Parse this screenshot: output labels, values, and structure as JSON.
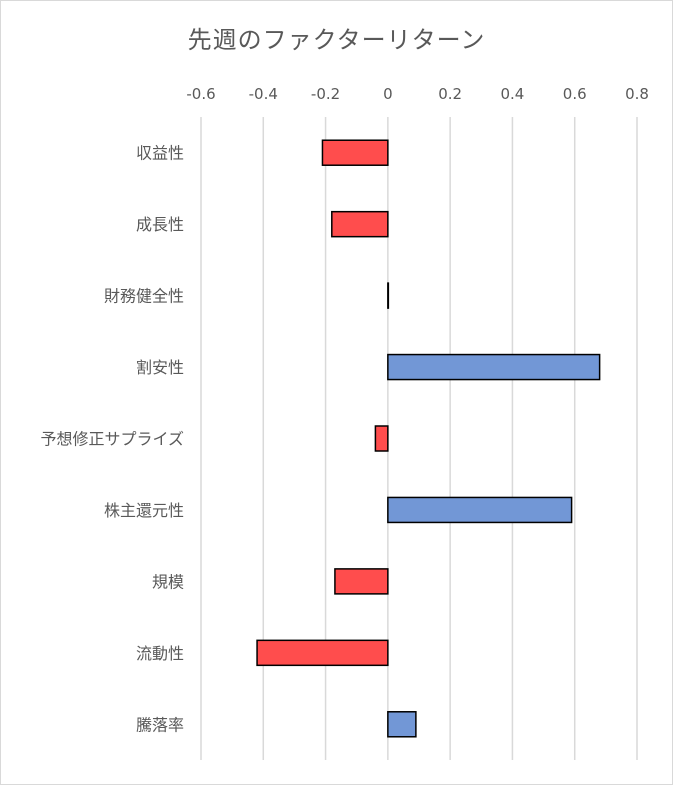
{
  "chart_data": {
    "type": "bar",
    "orientation": "horizontal",
    "title": "先週のファクターリターン",
    "categories": [
      "収益性",
      "成長性",
      "財務健全性",
      "割安性",
      "予想修正サプライズ",
      "株主還元性",
      "規模",
      "流動性",
      "騰落率"
    ],
    "values": [
      -0.21,
      -0.18,
      0.0,
      0.68,
      -0.04,
      0.59,
      -0.17,
      -0.42,
      0.09
    ],
    "xlim": [
      -0.6,
      0.8
    ],
    "xticks": [
      "-0.6",
      "-0.4",
      "-0.2",
      "0",
      "0.2",
      "0.4",
      "0.6",
      "0.8"
    ],
    "xtick_values": [
      -0.6,
      -0.4,
      -0.2,
      0,
      0.2,
      0.4,
      0.6,
      0.8
    ],
    "x_axis_position": "top",
    "grid": true,
    "colors": {
      "positive": "#7297d6",
      "negative": "#ff4d4d",
      "outline": "#000000",
      "grid": "#d9d9d9"
    }
  }
}
